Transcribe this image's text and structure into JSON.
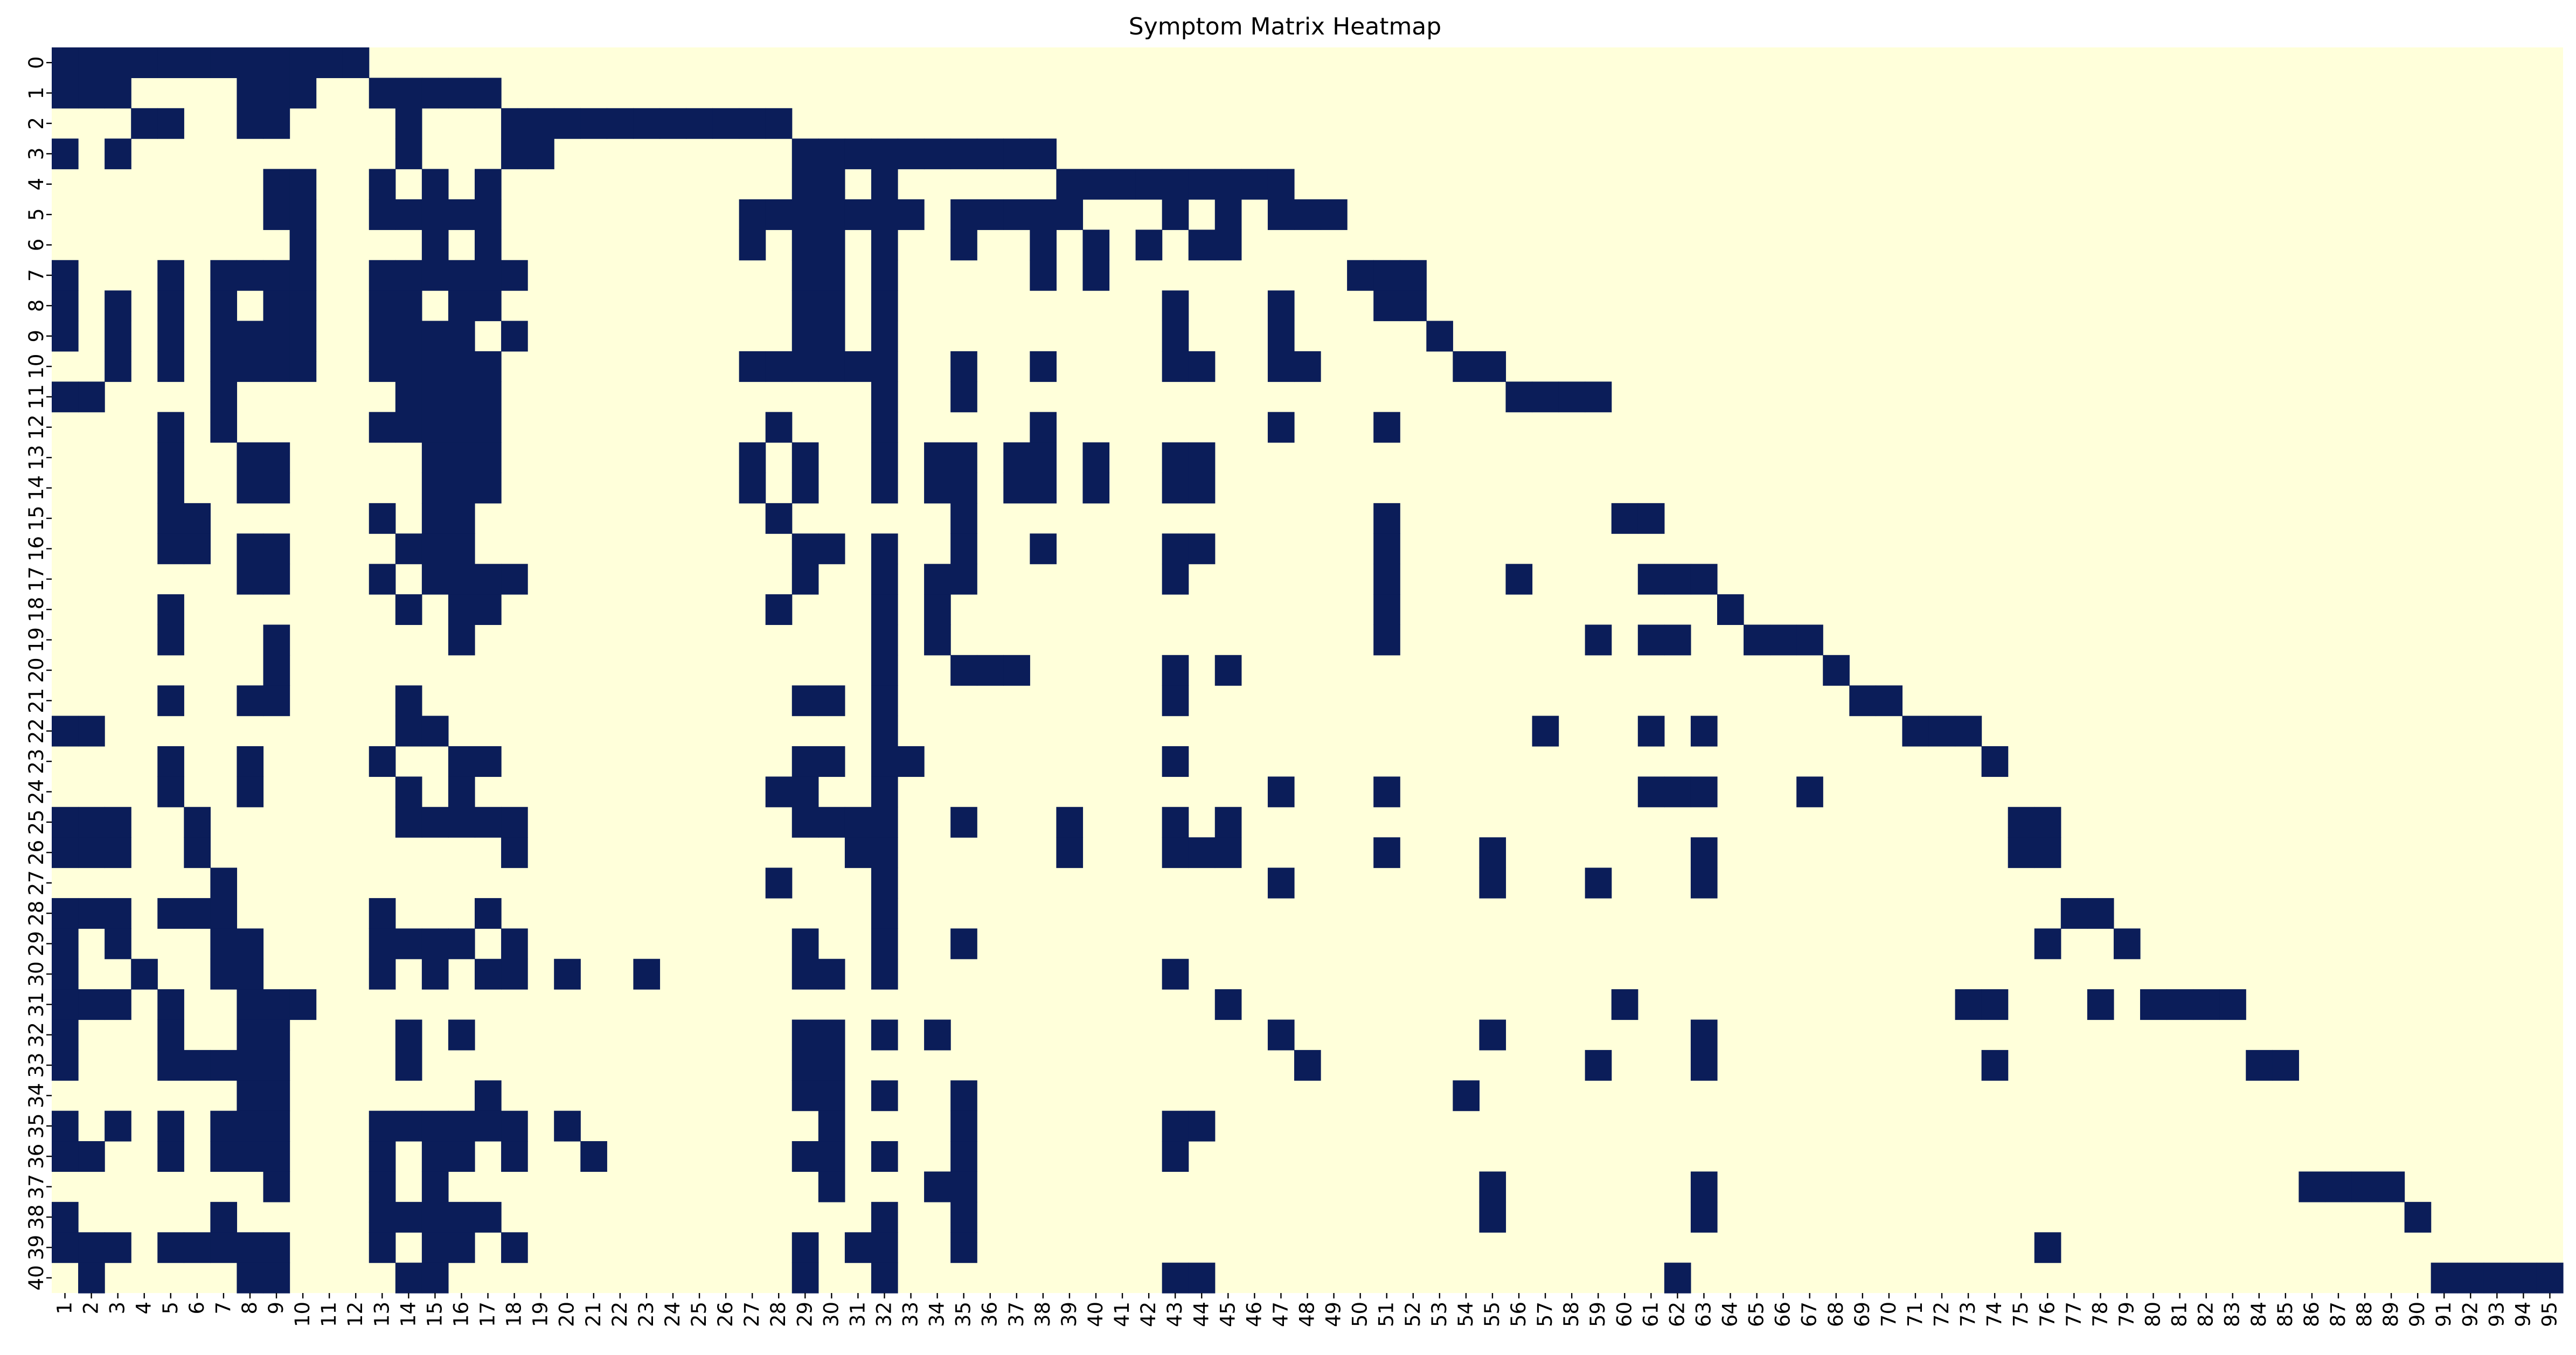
{
  "chart_data": {
    "type": "heatmap",
    "title": "Symptom Matrix Heatmap",
    "xlabel": "",
    "ylabel": "",
    "x_categories": [
      "1",
      "2",
      "3",
      "4",
      "5",
      "6",
      "7",
      "8",
      "9",
      "10",
      "11",
      "12",
      "13",
      "14",
      "15",
      "16",
      "17",
      "18",
      "19",
      "20",
      "21",
      "22",
      "23",
      "24",
      "25",
      "26",
      "27",
      "28",
      "29",
      "30",
      "31",
      "32",
      "33",
      "34",
      "35",
      "36",
      "37",
      "38",
      "39",
      "40",
      "41",
      "42",
      "43",
      "44",
      "45",
      "46",
      "47",
      "48",
      "49",
      "50",
      "51",
      "52",
      "53",
      "54",
      "55",
      "56",
      "57",
      "58",
      "59",
      "60",
      "61",
      "62",
      "63",
      "64",
      "65",
      "66",
      "67",
      "68",
      "69",
      "70",
      "71",
      "72",
      "73",
      "74",
      "75",
      "76",
      "77",
      "78",
      "79",
      "80",
      "81",
      "82",
      "83",
      "84",
      "85",
      "86",
      "87",
      "88",
      "89",
      "90",
      "91",
      "92",
      "93",
      "94",
      "95"
    ],
    "y_categories": [
      "0",
      "1",
      "2",
      "3",
      "4",
      "5",
      "6",
      "7",
      "8",
      "9",
      "10",
      "11",
      "12",
      "13",
      "14",
      "15",
      "16",
      "17",
      "18",
      "19",
      "20",
      "21",
      "22",
      "23",
      "24",
      "25",
      "26",
      "27",
      "28",
      "29",
      "30",
      "31",
      "32",
      "33",
      "34",
      "35",
      "36",
      "37",
      "38",
      "39",
      "40"
    ],
    "colors": {
      "present": "#0b1d59",
      "absent": "#ffffda"
    },
    "colorbar": false,
    "cells_present": [
      [
        1,
        2,
        3,
        4,
        5,
        6,
        7,
        8,
        9,
        10,
        11,
        12
      ],
      [
        1,
        2,
        3,
        8,
        9,
        10,
        13,
        14,
        15,
        16,
        17
      ],
      [
        4,
        5,
        8,
        9,
        14,
        18,
        19,
        20,
        21,
        22,
        23,
        24,
        25,
        26,
        27,
        28
      ],
      [
        1,
        3,
        14,
        18,
        19,
        29,
        30,
        31,
        32,
        33,
        34,
        35,
        36,
        37,
        38
      ],
      [
        9,
        10,
        13,
        15,
        17,
        29,
        30,
        32,
        39,
        40,
        41,
        42,
        43,
        44,
        45,
        46,
        47
      ],
      [
        9,
        10,
        13,
        14,
        15,
        16,
        17,
        27,
        28,
        29,
        30,
        31,
        32,
        33,
        35,
        36,
        37,
        38,
        39,
        43,
        45,
        47,
        48,
        49
      ],
      [
        10,
        15,
        17,
        27,
        29,
        30,
        32,
        35,
        38,
        40,
        42,
        44,
        45
      ],
      [
        1,
        5,
        7,
        8,
        9,
        10,
        13,
        14,
        15,
        16,
        17,
        18,
        29,
        30,
        32,
        38,
        40,
        50,
        51,
        52
      ],
      [
        1,
        3,
        5,
        7,
        9,
        10,
        13,
        14,
        16,
        17,
        29,
        30,
        32,
        43,
        47,
        51,
        52
      ],
      [
        1,
        3,
        5,
        7,
        8,
        9,
        10,
        13,
        14,
        15,
        16,
        18,
        29,
        30,
        32,
        43,
        47,
        53
      ],
      [
        3,
        5,
        7,
        8,
        9,
        10,
        13,
        14,
        15,
        16,
        17,
        27,
        28,
        29,
        30,
        31,
        32,
        35,
        38,
        43,
        44,
        47,
        48,
        54,
        55
      ],
      [
        1,
        2,
        7,
        14,
        15,
        16,
        17,
        32,
        35,
        56,
        57,
        58,
        59
      ],
      [
        5,
        7,
        13,
        14,
        15,
        16,
        17,
        28,
        32,
        38,
        47,
        51
      ],
      [
        5,
        8,
        9,
        15,
        16,
        17,
        27,
        29,
        32,
        34,
        35,
        37,
        38,
        40,
        43,
        44
      ],
      [
        5,
        8,
        9,
        15,
        16,
        17,
        27,
        29,
        32,
        34,
        35,
        37,
        38,
        40,
        43,
        44
      ],
      [
        5,
        6,
        13,
        15,
        16,
        28,
        35,
        51,
        60,
        61
      ],
      [
        5,
        6,
        8,
        9,
        14,
        15,
        16,
        29,
        30,
        32,
        35,
        38,
        43,
        44,
        51
      ],
      [
        8,
        9,
        13,
        15,
        16,
        17,
        18,
        29,
        32,
        34,
        35,
        43,
        51,
        56,
        61,
        62,
        63
      ],
      [
        5,
        14,
        16,
        17,
        28,
        32,
        34,
        51,
        64
      ],
      [
        5,
        9,
        16,
        32,
        34,
        51,
        59,
        61,
        62,
        65,
        66,
        67
      ],
      [
        9,
        32,
        35,
        36,
        37,
        43,
        45,
        68
      ],
      [
        5,
        8,
        9,
        14,
        29,
        30,
        32,
        43,
        69,
        70
      ],
      [
        1,
        2,
        14,
        15,
        32,
        57,
        61,
        63,
        71,
        72,
        73
      ],
      [
        5,
        8,
        13,
        16,
        17,
        29,
        30,
        32,
        33,
        43,
        74
      ],
      [
        5,
        8,
        14,
        16,
        28,
        29,
        32,
        47,
        51,
        61,
        62,
        63,
        67
      ],
      [
        1,
        2,
        3,
        6,
        14,
        15,
        16,
        17,
        18,
        29,
        30,
        31,
        32,
        35,
        39,
        43,
        45,
        75,
        76
      ],
      [
        1,
        2,
        3,
        6,
        18,
        31,
        32,
        39,
        43,
        44,
        45,
        51,
        55,
        63,
        75,
        76
      ],
      [
        7,
        28,
        32,
        47,
        55,
        59,
        63
      ],
      [
        1,
        2,
        3,
        5,
        6,
        7,
        13,
        17,
        32,
        77,
        78
      ],
      [
        1,
        3,
        7,
        8,
        13,
        14,
        15,
        16,
        18,
        29,
        32,
        35,
        76,
        79
      ],
      [
        1,
        4,
        7,
        8,
        13,
        15,
        17,
        18,
        20,
        23,
        29,
        30,
        32,
        43
      ],
      [
        1,
        2,
        3,
        5,
        8,
        9,
        10,
        45,
        60,
        73,
        74,
        78,
        80,
        81,
        82,
        83
      ],
      [
        1,
        5,
        8,
        9,
        14,
        16,
        29,
        30,
        32,
        34,
        47,
        55,
        63
      ],
      [
        1,
        5,
        6,
        7,
        8,
        9,
        14,
        29,
        30,
        48,
        59,
        63,
        74,
        84,
        85
      ],
      [
        8,
        9,
        17,
        29,
        30,
        32,
        35,
        54
      ],
      [
        1,
        3,
        5,
        7,
        8,
        9,
        13,
        14,
        15,
        16,
        17,
        18,
        20,
        30,
        35,
        43,
        44
      ],
      [
        1,
        2,
        5,
        7,
        8,
        9,
        13,
        15,
        16,
        18,
        21,
        29,
        30,
        32,
        35,
        43
      ],
      [
        9,
        13,
        15,
        30,
        34,
        35,
        55,
        63,
        86,
        87,
        88,
        89
      ],
      [
        1,
        7,
        13,
        14,
        15,
        16,
        17,
        32,
        35,
        55,
        63,
        90
      ],
      [
        1,
        2,
        3,
        5,
        6,
        7,
        8,
        9,
        13,
        15,
        16,
        18,
        29,
        31,
        32,
        35,
        76
      ],
      [
        2,
        8,
        9,
        14,
        15,
        29,
        32,
        43,
        44,
        62,
        91,
        92,
        93,
        94,
        95
      ]
    ]
  }
}
